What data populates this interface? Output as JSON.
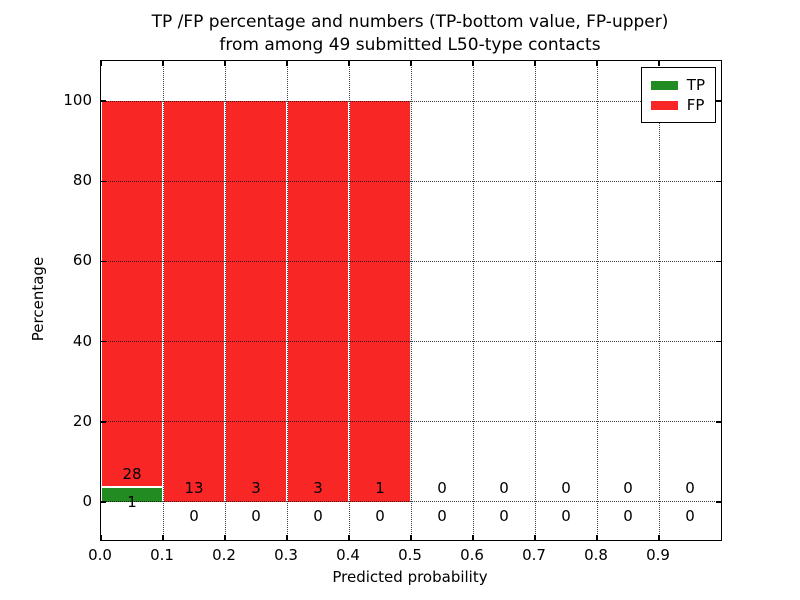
{
  "chart_data": {
    "type": "bar",
    "stacked": true,
    "title_line1": "TP /FP percentage and numbers (TP-bottom value, FP-upper)",
    "title_line2": "from among 49 submitted L50-type contacts",
    "xlabel": "Predicted probability",
    "ylabel": "Percentage",
    "xlim": [
      0.0,
      1.0
    ],
    "ylim": [
      -9.5,
      110
    ],
    "x_tick_values": [
      0.0,
      0.1,
      0.2,
      0.3,
      0.4,
      0.5,
      0.6,
      0.7,
      0.8,
      0.9
    ],
    "x_tick_labels": [
      "0.0",
      "0.1",
      "0.2",
      "0.3",
      "0.4",
      "0.5",
      "0.6",
      "0.7",
      "0.8",
      "0.9"
    ],
    "y_tick_values": [
      0,
      20,
      40,
      60,
      80,
      100
    ],
    "y_tick_labels": [
      "0",
      "20",
      "40",
      "60",
      "80",
      "100"
    ],
    "grid": "dotted-both-axes-drawn-over-bars",
    "legend_position": "upper-right",
    "colors": {
      "tp": "#228b22",
      "fp": "#f92626"
    },
    "legend": [
      {
        "label": "TP",
        "series": "tp"
      },
      {
        "label": "FP",
        "series": "fp"
      }
    ],
    "bins": [
      {
        "range": [
          0.0,
          0.1
        ],
        "tp": 1,
        "fp": 28,
        "tp_pct": 3.45,
        "fp_pct": 96.55
      },
      {
        "range": [
          0.1,
          0.2
        ],
        "tp": 0,
        "fp": 13,
        "tp_pct": 0,
        "fp_pct": 100
      },
      {
        "range": [
          0.2,
          0.3
        ],
        "tp": 0,
        "fp": 3,
        "tp_pct": 0,
        "fp_pct": 100
      },
      {
        "range": [
          0.3,
          0.4
        ],
        "tp": 0,
        "fp": 3,
        "tp_pct": 0,
        "fp_pct": 100
      },
      {
        "range": [
          0.4,
          0.5
        ],
        "tp": 0,
        "fp": 1,
        "tp_pct": 0,
        "fp_pct": 100
      },
      {
        "range": [
          0.5,
          0.6
        ],
        "tp": 0,
        "fp": 0,
        "tp_pct": 0,
        "fp_pct": 0
      },
      {
        "range": [
          0.6,
          0.7
        ],
        "tp": 0,
        "fp": 0,
        "tp_pct": 0,
        "fp_pct": 0
      },
      {
        "range": [
          0.7,
          0.8
        ],
        "tp": 0,
        "fp": 0,
        "tp_pct": 0,
        "fp_pct": 0
      },
      {
        "range": [
          0.8,
          0.9
        ],
        "tp": 0,
        "fp": 0,
        "tp_pct": 0,
        "fp_pct": 0
      },
      {
        "range": [
          0.9,
          1.0
        ],
        "tp": 0,
        "fp": 0,
        "tp_pct": 0,
        "fp_pct": 0
      }
    ]
  }
}
